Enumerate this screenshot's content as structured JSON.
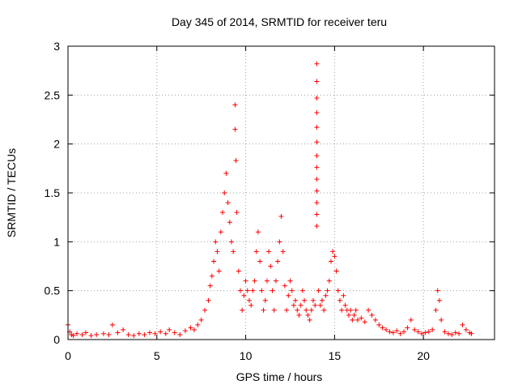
{
  "chart_data": {
    "type": "scatter",
    "title": "Day 345 of 2014, SRMTID for receiver teru",
    "xlabel": "GPS time / hours",
    "ylabel": "SRMTID / TECUs",
    "xlim": [
      0,
      24
    ],
    "ylim": [
      0,
      3
    ],
    "xticks": [
      0,
      5,
      10,
      15,
      20
    ],
    "yticks": [
      0,
      0.5,
      1,
      1.5,
      2,
      2.5,
      3
    ],
    "ytick_labels": [
      "0",
      "0.5",
      "1",
      "1.5",
      "2",
      "2.5",
      "3"
    ],
    "grid": true,
    "marker": "+",
    "color": "#ff0000",
    "series": [
      {
        "name": "SRMTID",
        "x": [
          0.0,
          0.1,
          0.2,
          0.3,
          0.5,
          0.8,
          1.0,
          1.3,
          1.6,
          2.0,
          2.3,
          2.5,
          2.8,
          3.1,
          3.4,
          3.7,
          4.0,
          4.3,
          4.6,
          4.9,
          5.2,
          5.5,
          5.7,
          6.0,
          6.3,
          6.6,
          6.9,
          7.1,
          7.3,
          7.5,
          7.7,
          7.9,
          8.0,
          8.1,
          8.2,
          8.3,
          8.4,
          8.5,
          8.6,
          8.7,
          8.8,
          8.9,
          9.0,
          9.1,
          9.2,
          9.3,
          9.4,
          9.4,
          9.45,
          9.5,
          9.6,
          9.7,
          9.8,
          9.9,
          10.0,
          10.1,
          10.2,
          10.3,
          10.4,
          10.5,
          10.6,
          10.7,
          10.8,
          10.9,
          11.0,
          11.1,
          11.2,
          11.3,
          11.4,
          11.5,
          11.6,
          11.7,
          11.8,
          11.9,
          12.0,
          12.1,
          12.2,
          12.3,
          12.4,
          12.5,
          12.6,
          12.7,
          12.8,
          12.9,
          13.0,
          13.1,
          13.2,
          13.3,
          13.4,
          13.5,
          13.6,
          13.7,
          13.8,
          13.9,
          14.0,
          14.0,
          14.0,
          14.0,
          14.0,
          14.0,
          14.0,
          14.0,
          14.0,
          14.0,
          14.0,
          14.0,
          14.0,
          14.1,
          14.2,
          14.3,
          14.4,
          14.5,
          14.6,
          14.7,
          14.8,
          14.9,
          15.0,
          15.1,
          15.2,
          15.3,
          15.4,
          15.5,
          15.6,
          15.7,
          15.8,
          15.9,
          16.0,
          16.1,
          16.2,
          16.3,
          16.5,
          16.7,
          16.9,
          17.1,
          17.3,
          17.5,
          17.7,
          17.9,
          18.1,
          18.3,
          18.5,
          18.7,
          18.9,
          19.1,
          19.3,
          19.5,
          19.7,
          19.9,
          20.1,
          20.3,
          20.5,
          20.7,
          20.8,
          20.9,
          21.0,
          21.2,
          21.4,
          21.6,
          21.8,
          22.0,
          22.2,
          22.4,
          22.6,
          22.7
        ],
        "y": [
          0.15,
          0.08,
          0.05,
          0.04,
          0.06,
          0.05,
          0.07,
          0.04,
          0.05,
          0.06,
          0.05,
          0.15,
          0.07,
          0.1,
          0.05,
          0.04,
          0.06,
          0.05,
          0.07,
          0.06,
          0.08,
          0.06,
          0.1,
          0.07,
          0.05,
          0.09,
          0.12,
          0.1,
          0.15,
          0.2,
          0.3,
          0.4,
          0.55,
          0.65,
          0.8,
          1.0,
          0.9,
          0.7,
          1.1,
          1.3,
          1.5,
          1.7,
          1.4,
          1.2,
          1.0,
          0.9,
          2.4,
          2.15,
          1.83,
          1.3,
          0.7,
          0.5,
          0.3,
          0.45,
          0.6,
          0.5,
          0.4,
          0.35,
          0.5,
          0.6,
          0.9,
          1.1,
          0.8,
          0.5,
          0.3,
          0.4,
          0.6,
          0.9,
          0.75,
          0.5,
          0.3,
          0.6,
          0.8,
          1.0,
          1.26,
          0.9,
          0.55,
          0.3,
          0.45,
          0.6,
          0.5,
          0.35,
          0.4,
          0.3,
          0.25,
          0.35,
          0.5,
          0.4,
          0.3,
          0.25,
          0.2,
          0.3,
          0.4,
          0.35,
          2.82,
          2.64,
          2.47,
          2.32,
          2.17,
          2.02,
          1.88,
          1.76,
          1.64,
          1.52,
          1.4,
          1.28,
          1.16,
          0.5,
          0.35,
          0.4,
          0.3,
          0.45,
          0.5,
          0.6,
          0.8,
          0.9,
          0.85,
          0.7,
          0.5,
          0.4,
          0.3,
          0.45,
          0.35,
          0.3,
          0.25,
          0.3,
          0.2,
          0.25,
          0.3,
          0.2,
          0.22,
          0.18,
          0.3,
          0.25,
          0.2,
          0.15,
          0.12,
          0.1,
          0.08,
          0.07,
          0.09,
          0.06,
          0.08,
          0.12,
          0.2,
          0.1,
          0.08,
          0.06,
          0.07,
          0.08,
          0.1,
          0.3,
          0.5,
          0.4,
          0.2,
          0.08,
          0.06,
          0.05,
          0.07,
          0.06,
          0.15,
          0.1,
          0.07,
          0.06
        ]
      }
    ]
  }
}
